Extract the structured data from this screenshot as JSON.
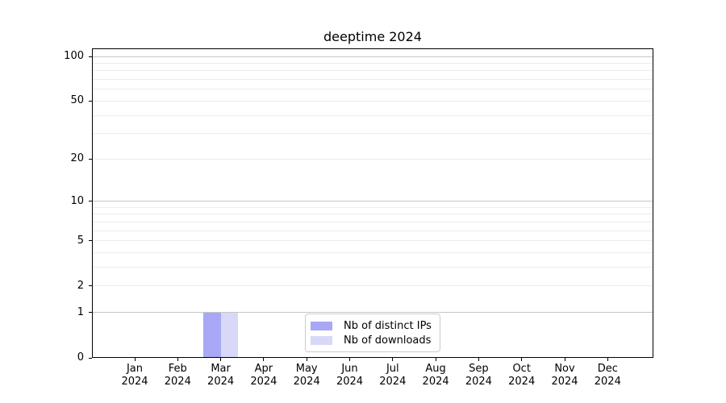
{
  "chart_data": {
    "type": "bar",
    "title": "deeptime 2024",
    "categories": [
      "Jan 2024",
      "Feb 2024",
      "Mar 2024",
      "Apr 2024",
      "May 2024",
      "Jun 2024",
      "Jul 2024",
      "Aug 2024",
      "Sep 2024",
      "Oct 2024",
      "Nov 2024",
      "Dec 2024"
    ],
    "series": [
      {
        "name": "Nb of distinct IPs",
        "color": "#a8a8f6",
        "values": [
          0,
          0,
          1,
          0,
          0,
          0,
          0,
          0,
          0,
          0,
          0,
          0
        ]
      },
      {
        "name": "Nb of downloads",
        "color": "#d8d8f8",
        "values": [
          0,
          0,
          1,
          0,
          0,
          0,
          0,
          0,
          0,
          0,
          0,
          0
        ]
      }
    ],
    "xlabel": "",
    "ylabel": "",
    "y_axis": {
      "scale": "log(value+1)",
      "tick_values": [
        0,
        1,
        2,
        5,
        10,
        20,
        50,
        100
      ],
      "ylim": [
        0,
        113
      ]
    },
    "legend": {
      "position": "lower center"
    },
    "grid": {
      "horizontal": true,
      "vertical": false,
      "major_color": "#c6c6c6",
      "minor_color": "#ececec",
      "major_lines_at": [
        1,
        10,
        100
      ],
      "minor_lines_at": [
        2,
        3,
        4,
        5,
        6,
        7,
        8,
        9,
        20,
        30,
        40,
        50,
        60,
        70,
        80,
        90
      ]
    },
    "axis_color": "#000000"
  }
}
